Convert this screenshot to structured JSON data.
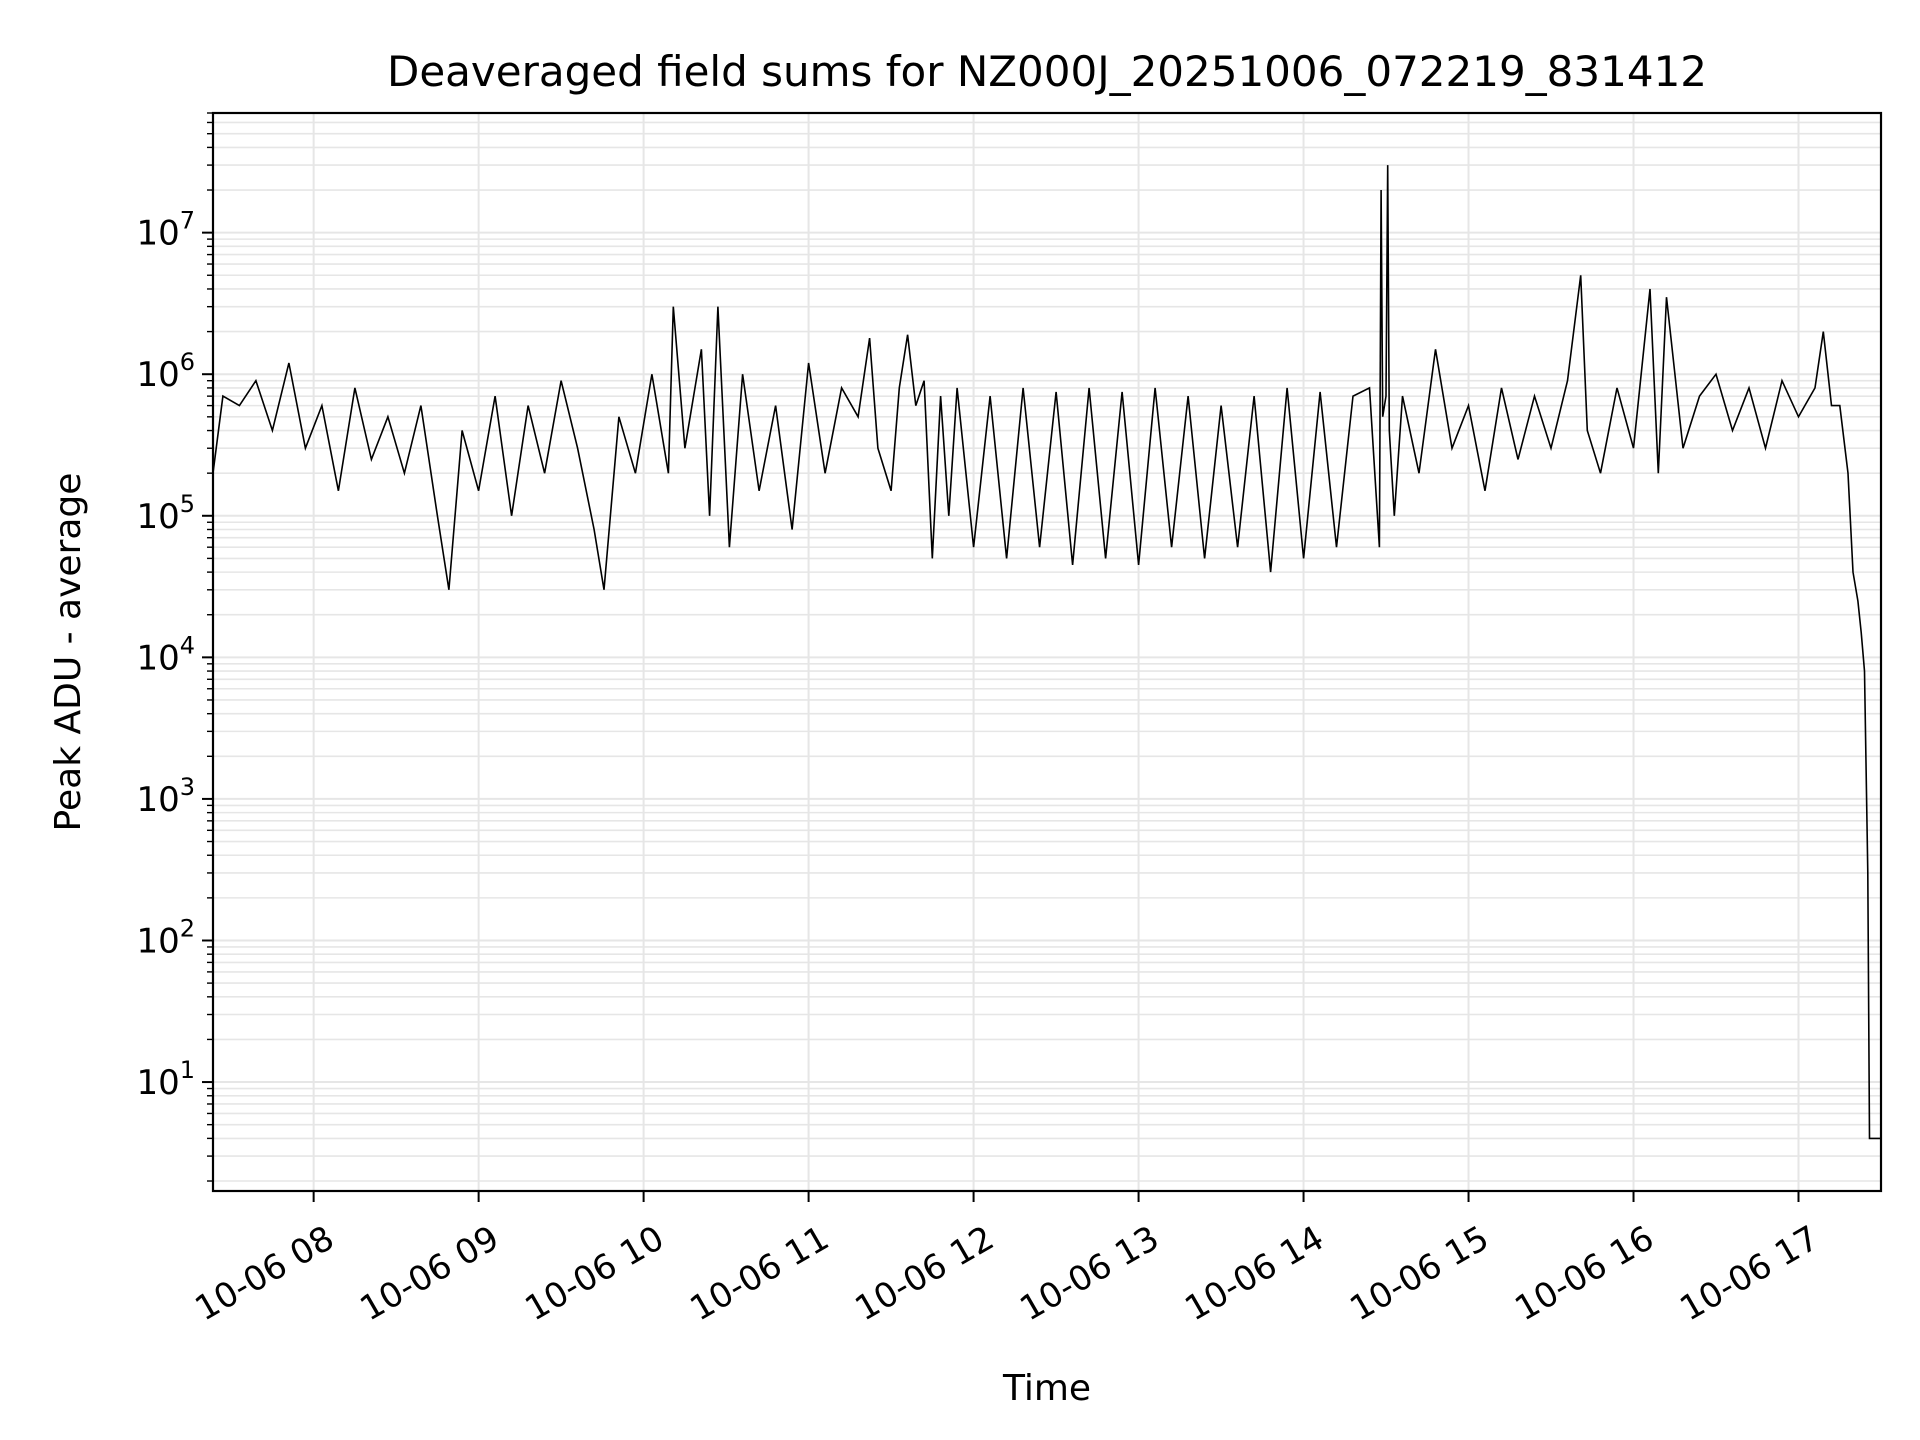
{
  "chart_data": {
    "type": "line",
    "title": "Deaveraged field sums for NZ000J_20251006_072219_831412",
    "xlabel": "Time",
    "ylabel": "Peak ADU - average",
    "yscale": "log",
    "ylim": [
      1.7,
      70000000
    ],
    "xlim_hours": [
      7.39,
      17.5
    ],
    "grid": true,
    "legend": "none",
    "line_color": "#000000",
    "x_ticks": [
      {
        "label": "10-06 08",
        "hour": 8
      },
      {
        "label": "10-06 09",
        "hour": 9
      },
      {
        "label": "10-06 10",
        "hour": 10
      },
      {
        "label": "10-06 11",
        "hour": 11
      },
      {
        "label": "10-06 12",
        "hour": 12
      },
      {
        "label": "10-06 13",
        "hour": 13
      },
      {
        "label": "10-06 14",
        "hour": 14
      },
      {
        "label": "10-06 15",
        "hour": 15
      },
      {
        "label": "10-06 16",
        "hour": 16
      },
      {
        "label": "10-06 17",
        "hour": 17
      }
    ],
    "y_ticks": [
      {
        "base": "10",
        "exp": "1",
        "value": 10
      },
      {
        "base": "10",
        "exp": "2",
        "value": 100
      },
      {
        "base": "10",
        "exp": "3",
        "value": 1000
      },
      {
        "base": "10",
        "exp": "4",
        "value": 10000
      },
      {
        "base": "10",
        "exp": "5",
        "value": 100000
      },
      {
        "base": "10",
        "exp": "6",
        "value": 1000000
      },
      {
        "base": "10",
        "exp": "7",
        "value": 10000000
      }
    ],
    "series": [
      {
        "name": "Peak ADU - average",
        "x_hours": [
          7.39,
          7.45,
          7.55,
          7.65,
          7.75,
          7.85,
          7.95,
          8.05,
          8.15,
          8.25,
          8.35,
          8.45,
          8.55,
          8.65,
          8.75,
          8.82,
          8.9,
          9.0,
          9.1,
          9.2,
          9.3,
          9.4,
          9.5,
          9.6,
          9.7,
          9.76,
          9.85,
          9.95,
          10.05,
          10.15,
          10.18,
          10.25,
          10.35,
          10.4,
          10.45,
          10.52,
          10.6,
          10.7,
          10.8,
          10.9,
          11.0,
          11.1,
          11.2,
          11.3,
          11.37,
          11.42,
          11.5,
          11.55,
          11.6,
          11.65,
          11.7,
          11.75,
          11.8,
          11.85,
          11.9,
          12.0,
          12.1,
          12.2,
          12.3,
          12.4,
          12.5,
          12.6,
          12.7,
          12.8,
          12.9,
          13.0,
          13.1,
          13.2,
          13.3,
          13.4,
          13.5,
          13.6,
          13.7,
          13.8,
          13.9,
          14.0,
          14.1,
          14.2,
          14.3,
          14.4,
          14.46,
          14.47,
          14.48,
          14.5,
          14.51,
          14.52,
          14.55,
          14.6,
          14.7,
          14.8,
          14.9,
          15.0,
          15.1,
          15.2,
          15.3,
          15.4,
          15.5,
          15.6,
          15.68,
          15.72,
          15.8,
          15.9,
          16.0,
          16.1,
          16.15,
          16.2,
          16.3,
          16.4,
          16.5,
          16.6,
          16.7,
          16.8,
          16.9,
          17.0,
          17.1,
          17.15,
          17.2,
          17.25,
          17.3,
          17.33,
          17.36,
          17.38,
          17.4,
          17.42,
          17.43,
          17.45,
          17.47,
          17.5
        ],
        "values": [
          200000,
          700000,
          600000,
          900000,
          400000,
          1200000,
          300000,
          600000,
          150000,
          800000,
          250000,
          500000,
          200000,
          600000,
          100000,
          30000,
          400000,
          150000,
          700000,
          100000,
          600000,
          200000,
          900000,
          300000,
          80000,
          30000,
          500000,
          200000,
          1000000,
          200000,
          3000000,
          300000,
          1500000,
          100000,
          3000000,
          60000,
          1000000,
          150000,
          600000,
          80000,
          1200000,
          200000,
          800000,
          500000,
          1800000,
          300000,
          150000,
          800000,
          1900000,
          600000,
          900000,
          50000,
          700000,
          100000,
          800000,
          60000,
          700000,
          50000,
          800000,
          60000,
          750000,
          45000,
          800000,
          50000,
          750000,
          45000,
          800000,
          60000,
          700000,
          50000,
          600000,
          60000,
          700000,
          40000,
          800000,
          50000,
          750000,
          60000,
          700000,
          800000,
          60000,
          20000000,
          500000,
          700000,
          30000000,
          400000,
          100000,
          700000,
          200000,
          1500000,
          300000,
          600000,
          150000,
          800000,
          250000,
          700000,
          300000,
          900000,
          5000000,
          400000,
          200000,
          800000,
          300000,
          4000000,
          200000,
          3500000,
          300000,
          700000,
          1000000,
          400000,
          800000,
          300000,
          900000,
          500000,
          800000,
          2000000,
          600000,
          600000,
          200000,
          40000,
          25000,
          15000,
          8000,
          300,
          4,
          4,
          4,
          4
        ]
      }
    ]
  }
}
